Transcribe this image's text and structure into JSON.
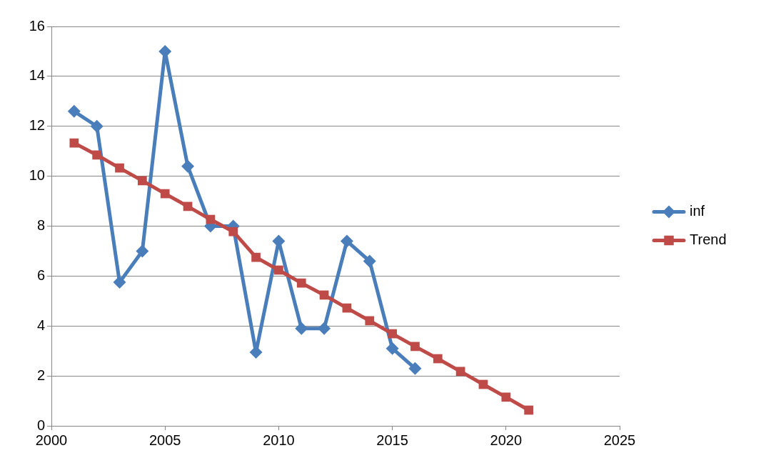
{
  "chart_data": {
    "type": "line",
    "x": [
      2001,
      2002,
      2003,
      2004,
      2005,
      2006,
      2007,
      2008,
      2009,
      2010,
      2011,
      2012,
      2013,
      2014,
      2015,
      2016
    ],
    "series": [
      {
        "name": "inf",
        "color": "#4a7ebb",
        "marker": "diamond",
        "values": [
          12.6,
          12.0,
          5.75,
          7.0,
          15.0,
          10.4,
          8.0,
          8.0,
          2.95,
          7.4,
          3.9,
          3.9,
          7.4,
          6.6,
          3.1,
          2.3
        ]
      },
      {
        "name": "Trend",
        "type": "line",
        "color": "#be4b48",
        "marker": "square",
        "x": [
          2001,
          2002,
          2003,
          2004,
          2005,
          2006,
          2007,
          2008,
          2009,
          2010,
          2011,
          2012,
          2013,
          2014,
          2015,
          2016,
          2017,
          2018,
          2019,
          2020,
          2021
        ],
        "values": [
          11.33,
          10.85,
          10.33,
          9.82,
          9.3,
          8.79,
          8.27,
          7.78,
          6.75,
          6.24,
          5.72,
          5.24,
          4.72,
          4.21,
          3.69,
          3.18,
          2.69,
          2.18,
          1.66,
          1.15,
          0.63
        ]
      }
    ],
    "xlim": [
      2000,
      2025
    ],
    "xticks": [
      2000,
      2005,
      2010,
      2015,
      2020,
      2025
    ],
    "ylim": [
      0,
      16
    ],
    "yticks": [
      0,
      2,
      4,
      6,
      8,
      10,
      12,
      14,
      16
    ],
    "grid": "y",
    "legend": "right",
    "line_style": "solid"
  }
}
